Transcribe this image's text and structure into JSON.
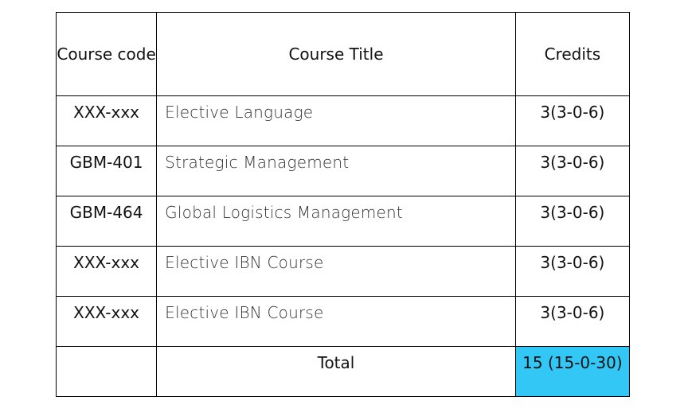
{
  "header": {
    "code": "Course code",
    "title": "Course Title",
    "credits": "Credits"
  },
  "rows": [
    {
      "code": "XXX-xxx",
      "title": "Elective Language",
      "credits": "3(3-0-6)"
    },
    {
      "code": "GBM-401",
      "title": "Strategic Management",
      "credits": "3(3-0-6)"
    },
    {
      "code": "GBM-464",
      "title": "Global Logistics Management",
      "credits": "3(3-0-6)"
    },
    {
      "code": "XXX-xxx",
      "title": "Elective IBN Course",
      "credits": "3(3-0-6)"
    },
    {
      "code": "XXX-xxx",
      "title": "Elective IBN Course",
      "credits": "3(3-0-6)"
    }
  ],
  "total": {
    "label": "Total",
    "value": "15 (15-0-30)"
  },
  "colors": {
    "highlight": "#33c7f5",
    "border": "#000000"
  }
}
